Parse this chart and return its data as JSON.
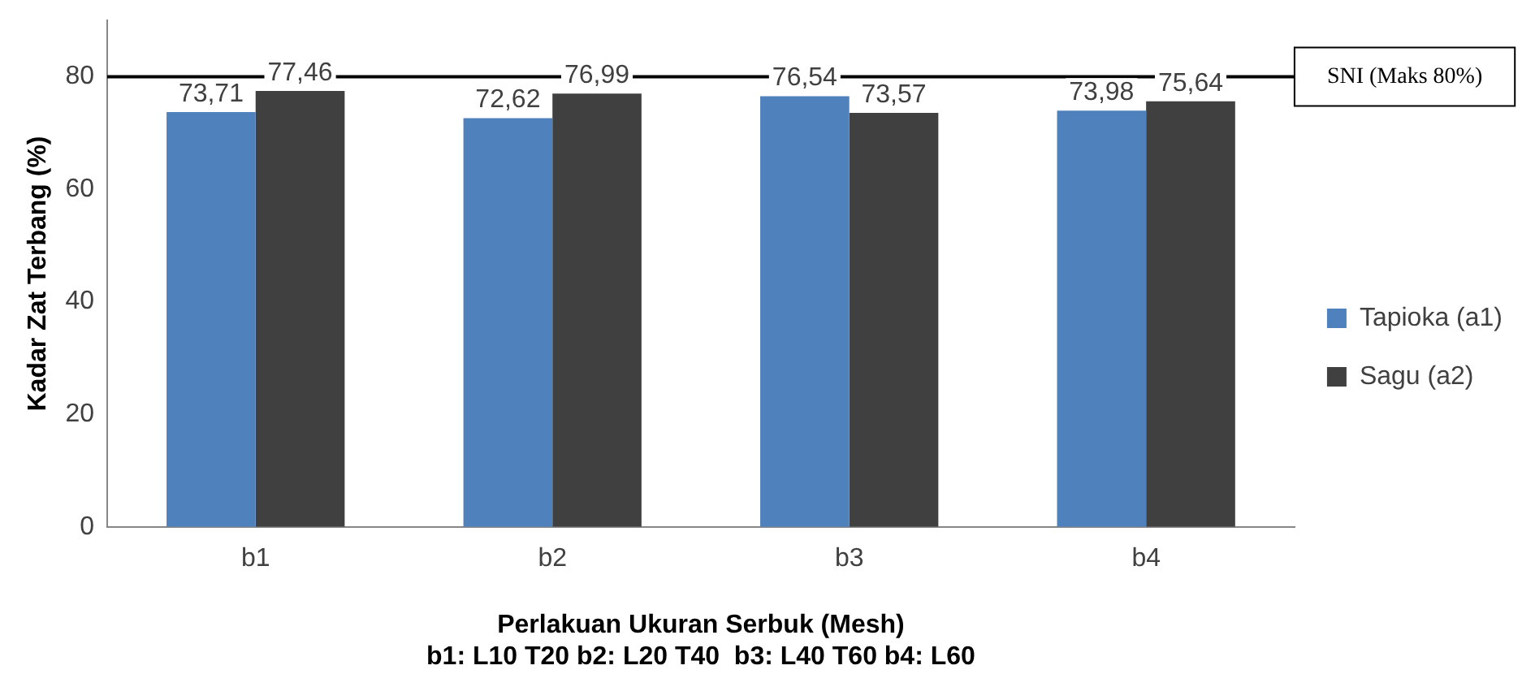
{
  "chart_data": {
    "type": "bar",
    "xlabel": "Perlakuan Ukuran Serbuk (Mesh)",
    "ylabel": "Kadar Zat Terbang (%)",
    "annotations": [
      "b1: L10 T20 b2: L20 T40  b3: L40 T60 b4: L60"
    ],
    "categories": [
      "b1",
      "b2",
      "b3",
      "b4"
    ],
    "series": [
      {
        "name": "Tapioka (a1)",
        "color": "#4f81bd",
        "values": [
          73.71,
          72.62,
          76.54,
          73.98
        ],
        "value_labels": [
          "73,71",
          "72,62",
          "76,54",
          "73,98"
        ]
      },
      {
        "name": "Sagu (a2)",
        "color": "#404040",
        "values": [
          77.46,
          76.99,
          73.57,
          75.64
        ],
        "value_labels": [
          "77,46",
          "76,99",
          "73,57",
          "75,64"
        ]
      }
    ],
    "ylim": [
      0,
      90
    ],
    "yticks": [
      0,
      20,
      40,
      60,
      80
    ],
    "grid": false,
    "legend": "right",
    "ref_lines": [
      {
        "axis": "y",
        "value": 80,
        "label": "SNI (Maks 80%)",
        "color": "#000000"
      }
    ]
  }
}
